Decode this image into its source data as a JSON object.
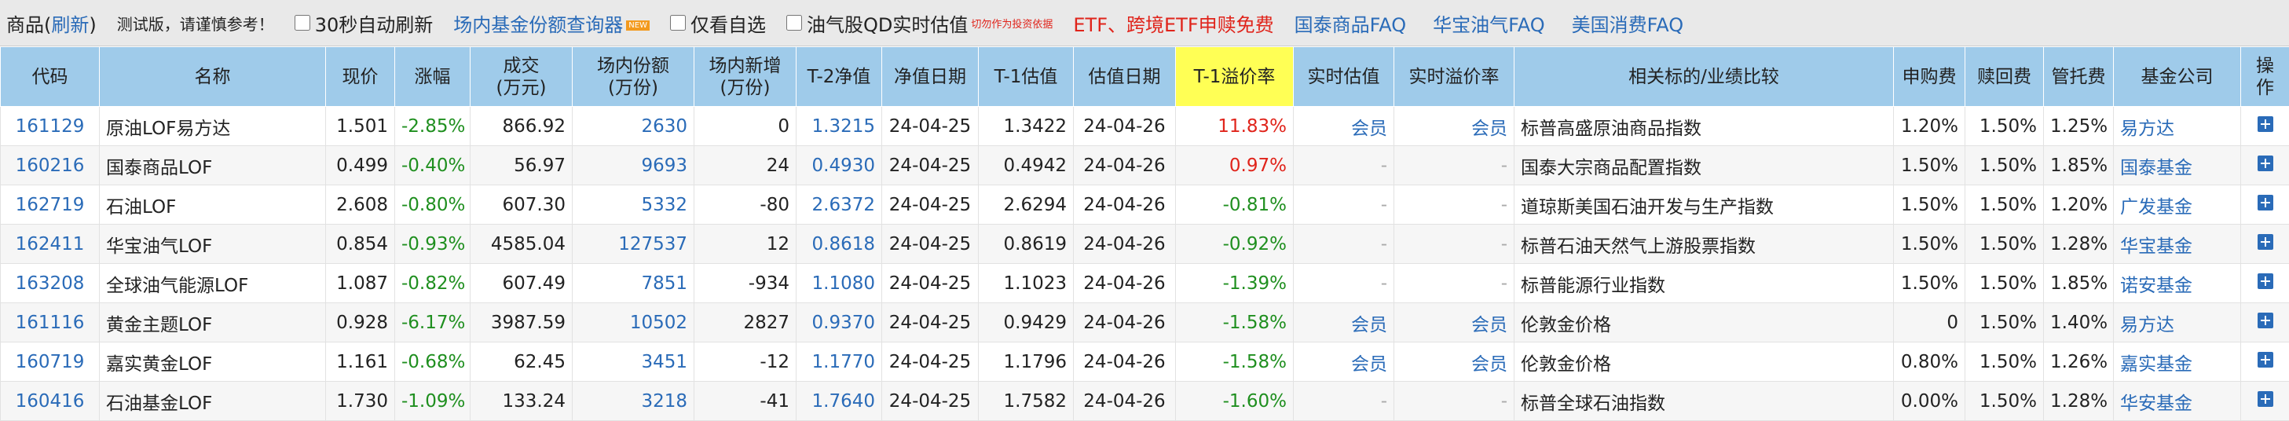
{
  "toolbar": {
    "section_prefix": "商品(",
    "refresh": "刷新",
    "section_suffix": ")",
    "notice": "测试版，请谨慎参考！",
    "auto_refresh": "30秒自动刷新",
    "share_query": "场内基金份额查询器",
    "new_badge": "NEW",
    "only_favorites": "仅看自选",
    "oil_qd": "油气股QD实时估值",
    "warning": "切勿作为投资依据",
    "etf_free": "ETF、跨境ETF申赎免费",
    "faq_links": [
      "国泰商品FAQ",
      "华宝油气FAQ",
      "美国消费FAQ"
    ]
  },
  "table": {
    "headers": [
      "代码",
      "名称",
      "现价",
      "涨幅",
      "成交\n(万元)",
      "场内份额\n(万份)",
      "场内新增\n(万份)",
      "T-2净值",
      "净值日期",
      "T-1估值",
      "估值日期",
      "T-1溢价率",
      "实时估值",
      "实时溢价率",
      "相关标的/业绩比较",
      "申购费",
      "赎回费",
      "管托费",
      "基金公司",
      "操\n作"
    ],
    "rows": [
      [
        "161129",
        "原油LOF易方达",
        "1.501",
        "-2.85%",
        "866.92",
        "2630",
        "0",
        "1.3215",
        "24-04-25",
        "1.3422",
        "24-04-26",
        "11.83%",
        "会员",
        "会员",
        "标普高盛原油商品指数",
        "1.20%",
        "1.50%",
        "1.25%",
        "易方达"
      ],
      [
        "160216",
        "国泰商品LOF",
        "0.499",
        "-0.40%",
        "56.97",
        "9693",
        "24",
        "0.4930",
        "24-04-25",
        "0.4942",
        "24-04-26",
        "0.97%",
        "-",
        "-",
        "国泰大宗商品配置指数",
        "1.50%",
        "1.50%",
        "1.85%",
        "国泰基金"
      ],
      [
        "162719",
        "石油LOF",
        "2.608",
        "-0.80%",
        "607.30",
        "5332",
        "-80",
        "2.6372",
        "24-04-25",
        "2.6294",
        "24-04-26",
        "-0.81%",
        "-",
        "-",
        "道琼斯美国石油开发与生产指数",
        "1.50%",
        "1.50%",
        "1.20%",
        "广发基金"
      ],
      [
        "162411",
        "华宝油气LOF",
        "0.854",
        "-0.93%",
        "4585.04",
        "127537",
        "12",
        "0.8618",
        "24-04-25",
        "0.8619",
        "24-04-26",
        "-0.92%",
        "-",
        "-",
        "标普石油天然气上游股票指数",
        "1.50%",
        "1.50%",
        "1.28%",
        "华宝基金"
      ],
      [
        "163208",
        "全球油气能源LOF",
        "1.087",
        "-0.82%",
        "607.49",
        "7851",
        "-934",
        "1.1080",
        "24-04-25",
        "1.1023",
        "24-04-26",
        "-1.39%",
        "-",
        "-",
        "标普能源行业指数",
        "1.50%",
        "1.50%",
        "1.85%",
        "诺安基金"
      ],
      [
        "161116",
        "黄金主题LOF",
        "0.928",
        "-6.17%",
        "3987.59",
        "10502",
        "2827",
        "0.9370",
        "24-04-25",
        "0.9429",
        "24-04-26",
        "-1.58%",
        "会员",
        "会员",
        "伦敦金价格",
        "0",
        "1.50%",
        "1.40%",
        "易方达"
      ],
      [
        "160719",
        "嘉实黄金LOF",
        "1.161",
        "-0.68%",
        "62.45",
        "3451",
        "-12",
        "1.1770",
        "24-04-25",
        "1.1796",
        "24-04-26",
        "-1.58%",
        "会员",
        "会员",
        "伦敦金价格",
        "0.80%",
        "1.50%",
        "1.26%",
        "嘉实基金"
      ],
      [
        "160416",
        "石油基金LOF",
        "1.730",
        "-1.09%",
        "133.24",
        "3218",
        "-41",
        "1.7640",
        "24-04-25",
        "1.7582",
        "24-04-26",
        "-1.60%",
        "-",
        "-",
        "标普全球石油指数",
        "0.00%",
        "1.50%",
        "1.28%",
        "华安基金"
      ]
    ]
  }
}
